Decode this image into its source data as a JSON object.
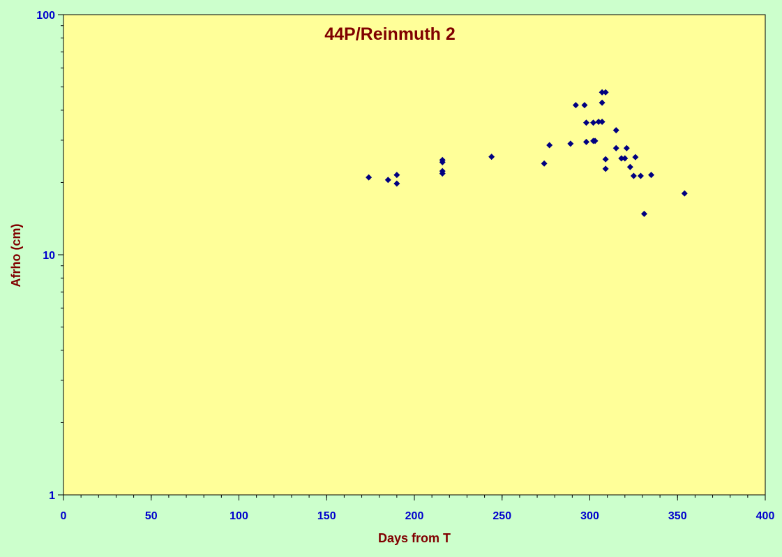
{
  "colors": {
    "page_background": "#ccffcc",
    "plot_background": "#ffff99",
    "title_color": "#800000",
    "axis_label_color": "#800000",
    "tick_label_color": "#0000cc",
    "marker_color": "#000080",
    "axis_color": "#000000"
  },
  "chart_data": {
    "type": "scatter",
    "title": "44P/Reinmuth 2",
    "xlabel": "Days from T",
    "ylabel": "Afrho (cm)",
    "xlim": [
      0,
      400
    ],
    "ylim": [
      1,
      100
    ],
    "yscale": "log",
    "grid": false,
    "legend": "none",
    "marker": "diamond",
    "x_ticks": [
      "0",
      "50",
      "100",
      "150",
      "200",
      "250",
      "300",
      "350",
      "400"
    ],
    "y_ticks": [
      "1",
      "10",
      "100"
    ],
    "series": [
      {
        "x": [
          174,
          185,
          190,
          190,
          216,
          216,
          216,
          216,
          244,
          274,
          277,
          289,
          292,
          297,
          298,
          298,
          302,
          302,
          303,
          305,
          307,
          307,
          307,
          309,
          309,
          309,
          315,
          315,
          318,
          320,
          321,
          323,
          325,
          326,
          329,
          331,
          335,
          354
        ],
        "y": [
          21.0,
          20.5,
          19.8,
          21.5,
          21.8,
          22.3,
          24.3,
          24.8,
          25.6,
          24.0,
          28.6,
          29.0,
          42.0,
          42.0,
          35.5,
          29.5,
          35.5,
          29.8,
          29.8,
          35.8,
          47.5,
          43.0,
          35.8,
          47.5,
          25.0,
          22.8,
          33.0,
          27.8,
          25.2,
          25.2,
          27.8,
          23.2,
          21.3,
          25.5,
          21.3,
          14.8,
          21.5,
          18.0
        ]
      }
    ]
  }
}
